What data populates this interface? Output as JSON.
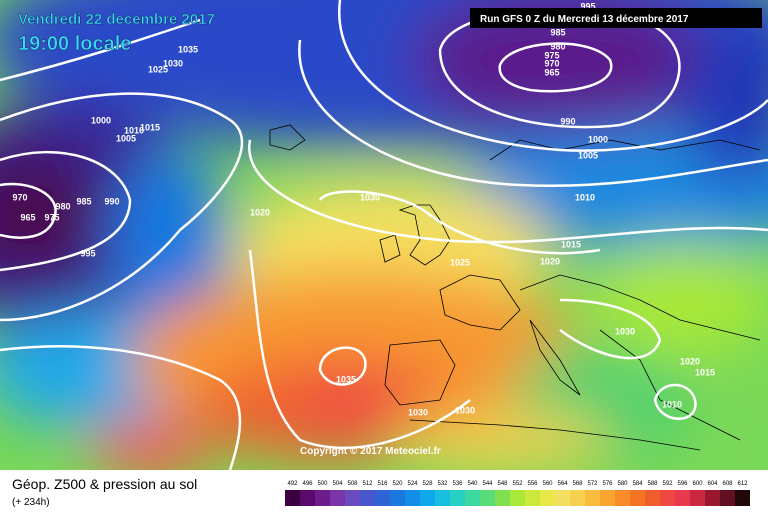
{
  "header": {
    "date": "Vendredi 22 decembre 2017",
    "time": "19:00 locale",
    "run": "Run GFS 0 Z du Mercredi 13 décembre 2017"
  },
  "isobar_labels": [
    985,
    980,
    975,
    970,
    965,
    995,
    990,
    1000,
    1005,
    1010,
    1015,
    1020,
    1025,
    1030,
    1020,
    970,
    965,
    975,
    980,
    985,
    990,
    995,
    1000,
    1005,
    1010,
    1015,
    1035,
    1030,
    1025,
    1030,
    1020,
    1015,
    1010,
    1035,
    1030,
    1030
  ],
  "copyright": "Copyright © 2017 Meteociel.fr",
  "footer": {
    "title": "Géop. Z500 & pression au sol",
    "lead": "(+ 234h)"
  },
  "scale": {
    "ticks": [
      492,
      496,
      500,
      504,
      508,
      512,
      516,
      520,
      524,
      528,
      532,
      536,
      540,
      544,
      548,
      552,
      556,
      560,
      564,
      568,
      572,
      576,
      580,
      584,
      588,
      592,
      596,
      600,
      604,
      608,
      612
    ],
    "colors": [
      "#3a0040",
      "#5a0a6a",
      "#6e1c8c",
      "#7a36a8",
      "#6a4cc0",
      "#4858cc",
      "#2e64d4",
      "#1a78e0",
      "#128ee8",
      "#10a8ec",
      "#18c0e0",
      "#28d0c4",
      "#3cd8a0",
      "#58dc78",
      "#80e050",
      "#a8e838",
      "#cce83a",
      "#e8e84a",
      "#f4e060",
      "#f8d050",
      "#f8bc3c",
      "#f8a430",
      "#f88c28",
      "#f47424",
      "#f05c2c",
      "#ee4840",
      "#e83a4c",
      "#c82840",
      "#981830",
      "#601020",
      "#200808"
    ]
  }
}
